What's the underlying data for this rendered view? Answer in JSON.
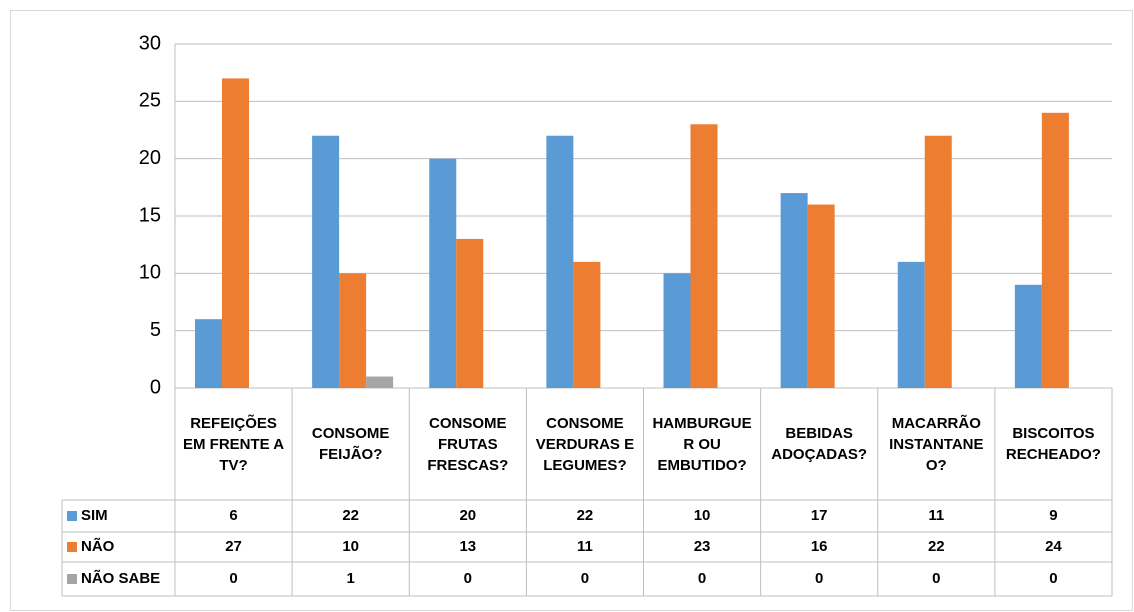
{
  "chart_data": {
    "type": "bar",
    "categories": [
      "REFEIÇÕES EM FRENTE A TV?",
      "CONSOME FEIJÃO?",
      "CONSOME FRUTAS FRESCAS?",
      "CONSOME VERDURAS E LEGUMES?",
      "HAMBURGUER OU EMBUTIDO?",
      "BEBIDAS ADOÇADAS?",
      "MACARRÃO INSTANTANEO?",
      "BISCOITOS RECHEADO?"
    ],
    "series": [
      {
        "name": "SIM",
        "color": "#5b9bd5",
        "values": [
          6,
          22,
          20,
          22,
          10,
          17,
          11,
          9
        ]
      },
      {
        "name": "NÃO",
        "color": "#ed7d31",
        "values": [
          27,
          10,
          13,
          11,
          23,
          16,
          22,
          24
        ]
      },
      {
        "name": "NÃO SABE",
        "color": "#a5a5a5",
        "values": [
          0,
          1,
          0,
          0,
          0,
          0,
          0,
          0
        ]
      }
    ],
    "ylim": [
      0,
      30
    ],
    "yticks": [
      0,
      5,
      10,
      15,
      20,
      25,
      30
    ],
    "grid": true,
    "data_table": true
  }
}
